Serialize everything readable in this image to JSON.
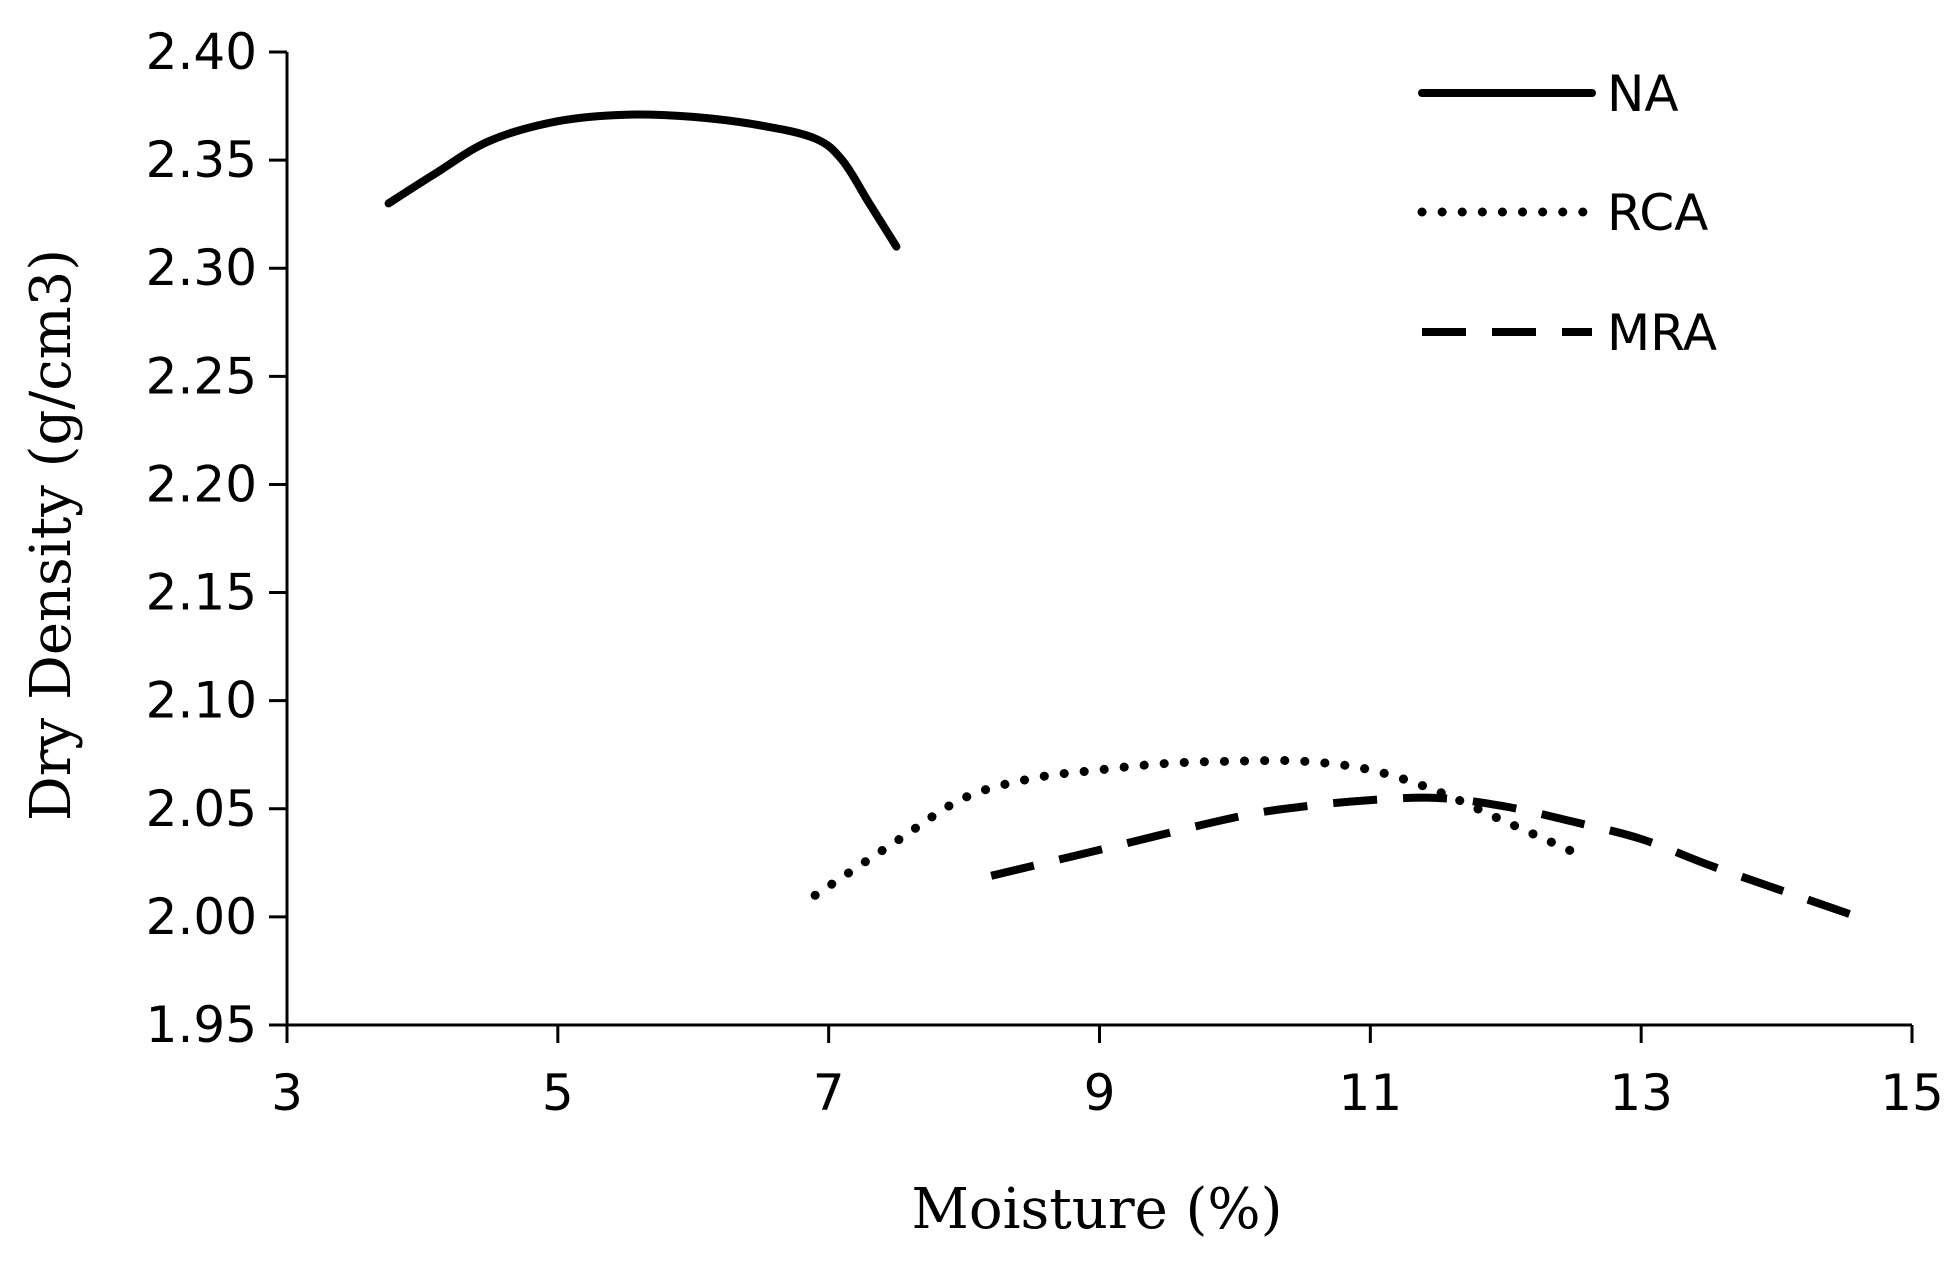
{
  "chart_data": {
    "type": "line",
    "title": "",
    "xlabel": "Moisture (%)",
    "ylabel": "Dry Density (g/cm3)",
    "xlim": [
      3,
      15
    ],
    "ylim": [
      1.95,
      2.4
    ],
    "x_ticks": [
      3,
      5,
      7,
      9,
      11,
      13,
      15
    ],
    "x_tick_labels": [
      "3",
      "5",
      "7",
      "9",
      "11",
      "13",
      "15"
    ],
    "y_ticks": [
      1.95,
      2.0,
      2.05,
      2.1,
      2.15,
      2.2,
      2.25,
      2.3,
      2.35,
      2.4
    ],
    "y_tick_labels": [
      "1.95",
      "2.00",
      "2.05",
      "2.10",
      "2.15",
      "2.20",
      "2.25",
      "2.30",
      "2.35",
      "2.40"
    ],
    "grid": false,
    "legend_position": "top-right",
    "series": [
      {
        "name": "NA",
        "style": "solid",
        "color": "#000000",
        "x": [
          3.75,
          4.1,
          4.5,
          5.0,
          5.5,
          6.0,
          6.5,
          6.9,
          7.1,
          7.3,
          7.5
        ],
        "y": [
          2.33,
          2.344,
          2.359,
          2.368,
          2.371,
          2.37,
          2.366,
          2.36,
          2.35,
          2.33,
          2.31
        ]
      },
      {
        "name": "RCA",
        "style": "dotted",
        "color": "#000000",
        "x": [
          6.9,
          7.5,
          8.0,
          8.5,
          9.0,
          9.5,
          10.0,
          10.5,
          11.0,
          11.5,
          12.0,
          12.5
        ],
        "y": [
          2.01,
          2.035,
          2.055,
          2.064,
          2.068,
          2.071,
          2.072,
          2.072,
          2.068,
          2.058,
          2.044,
          2.03
        ]
      },
      {
        "name": "MRA",
        "style": "dashed",
        "color": "#000000",
        "x": [
          8.2,
          9.0,
          10.0,
          10.5,
          11.0,
          11.5,
          12.0,
          12.5,
          13.0,
          13.5,
          14.0,
          14.6
        ],
        "y": [
          2.019,
          2.031,
          2.046,
          2.051,
          2.054,
          2.055,
          2.051,
          2.044,
          2.036,
          2.024,
          2.013,
          2.0
        ]
      }
    ]
  }
}
